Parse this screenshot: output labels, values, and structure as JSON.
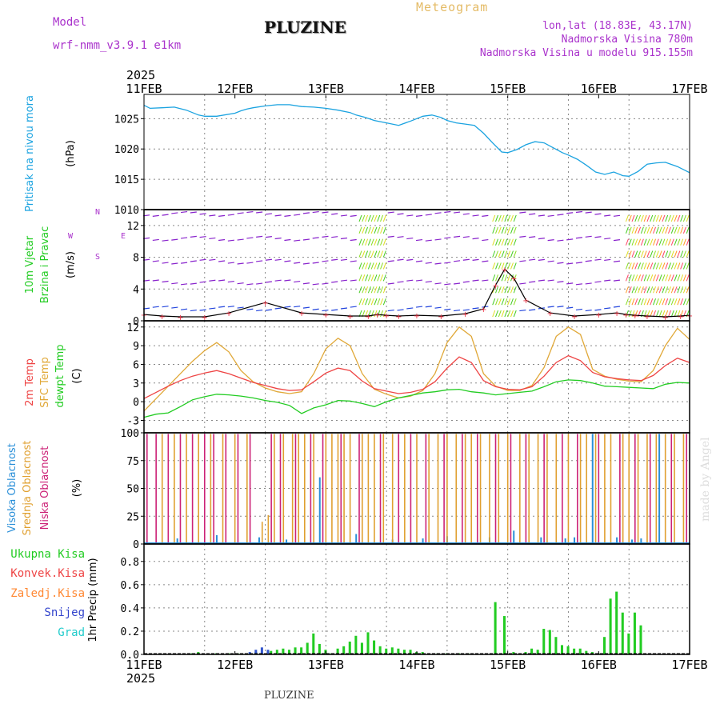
{
  "header": {
    "model_label": "Model",
    "model_name": "wrf-nmm_v3.9.1 e1km",
    "station": "PLUZINE",
    "product": "Meteogram",
    "lonlat": "lon,lat (18.83E, 43.17N)",
    "altitude": "Nadmorska Visina 780m",
    "model_altitude": "Nadmorska Visina u modelu 915.155m",
    "credit": "made by Angel",
    "footer_station": "PLUZINE"
  },
  "colors": {
    "pressure": "#1ba3e0",
    "temp2m": "#ee4444",
    "sfc": "#e0a838",
    "dewpt": "#22cc22",
    "high_cloud": "#2a8fd8",
    "mid_cloud": "#e0a030",
    "low_cloud": "#cc2277",
    "precip": "#22cc22",
    "snow": "#3355cc",
    "purple_text": "#aa33cc",
    "wind_purple": "#8822cc"
  },
  "chart_data": [
    {
      "type": "line",
      "panel": "pressure",
      "title": "Pritisak na nivou mora",
      "ylabel": "(hPa)",
      "year_label": "2025",
      "categories": [
        "11FEB",
        "12FEB",
        "13FEB",
        "14FEB",
        "15FEB",
        "16FEB",
        "17FEB"
      ],
      "ylim": [
        1010,
        1029
      ],
      "yticks": [
        1010,
        1015,
        1020,
        1025
      ],
      "grid": true,
      "series": [
        {
          "name": "Pritisak na nivou mora",
          "x": [
            0,
            0.1,
            0.3,
            0.5,
            0.7,
            0.9,
            1.0,
            1.2,
            1.5,
            1.6,
            1.7,
            1.8,
            2.0,
            2.2,
            2.4,
            2.6,
            2.8,
            3.0,
            3.2,
            3.4,
            3.5,
            3.65,
            3.8,
            4.0,
            4.2,
            4.4,
            4.6,
            4.75,
            4.9,
            5.0,
            5.15,
            5.3,
            5.45,
            5.6,
            5.75,
            5.9,
            6.0,
            6.15,
            6.3,
            6.45,
            6.6,
            6.75,
            6.9,
            7.0,
            7.15,
            7.3,
            7.45,
            7.6,
            7.75,
            7.9,
            8.0,
            8.15,
            8.3,
            8.45,
            8.6,
            8.8,
            9.0
          ],
          "values": [
            1027.2,
            1026.7,
            1026.8,
            1026.9,
            1026.4,
            1025.6,
            1025.4,
            1025.4,
            1025.9,
            1026.3,
            1026.6,
            1026.8,
            1027.1,
            1027.3,
            1027.3,
            1027.0,
            1026.9,
            1026.7,
            1026.4,
            1026.0,
            1025.6,
            1025.2,
            1024.7,
            1024.3,
            1023.9,
            1024.6,
            1025.4,
            1025.6,
            1025.2,
            1024.7,
            1024.3,
            1024.1,
            1023.9,
            1022.6,
            1021.0,
            1019.5,
            1019.4,
            1019.9,
            1020.7,
            1021.2,
            1021.0,
            1020.2,
            1019.4,
            1019.0,
            1018.3,
            1017.3,
            1016.2,
            1015.8,
            1016.2,
            1015.6,
            1015.5,
            1016.3,
            1017.5,
            1017.7,
            1017.8,
            1017.1,
            1016.1
          ]
        }
      ]
    },
    {
      "type": "scatter",
      "panel": "wind",
      "title": "10m Vjetar",
      "subtitle": "Brzina i Pravac",
      "ylabel": "(m/s)",
      "compass": [
        "N",
        "S",
        "W",
        "E"
      ],
      "ylim": [
        0,
        14
      ],
      "yticks": [
        0,
        4,
        8,
        12
      ],
      "grid": true,
      "series": [
        {
          "name": "Brzina",
          "x": [
            0,
            0.3,
            0.6,
            1.0,
            1.4,
            2.0,
            2.6,
            3.0,
            3.4,
            3.7,
            3.85,
            4.0,
            4.2,
            4.5,
            4.9,
            5.3,
            5.6,
            5.8,
            5.95,
            6.1,
            6.3,
            6.7,
            7.1,
            7.5,
            7.8,
            7.95,
            8.1,
            8.3,
            8.6,
            8.85,
            9.0
          ],
          "values": [
            0.8,
            0.6,
            0.5,
            0.5,
            1.0,
            2.3,
            1.0,
            0.8,
            0.6,
            0.6,
            0.8,
            0.7,
            0.6,
            0.7,
            0.6,
            0.9,
            1.5,
            4.5,
            6.5,
            5.4,
            2.6,
            1.0,
            0.6,
            0.8,
            1.0,
            0.8,
            0.7,
            0.6,
            0.5,
            0.6,
            0.7
          ]
        }
      ]
    },
    {
      "type": "line",
      "panel": "temperature",
      "title": "2m Temp",
      "subtitle": "SFC Temp",
      "title3": "dewpt Temp",
      "ylabel": "(C)",
      "ylim": [
        -5,
        13
      ],
      "yticks": [
        -3,
        0,
        3,
        6,
        9,
        12
      ],
      "grid": true,
      "series": [
        {
          "name": "2m Temp",
          "x": [
            0,
            0.2,
            0.4,
            0.6,
            0.8,
            1.0,
            1.2,
            1.4,
            1.6,
            1.8,
            2.0,
            2.2,
            2.4,
            2.6,
            2.8,
            3.0,
            3.2,
            3.4,
            3.6,
            3.8,
            4.0,
            4.2,
            4.4,
            4.6,
            4.8,
            5.0,
            5.2,
            5.4,
            5.6,
            5.8,
            6.0,
            6.2,
            6.4,
            6.6,
            6.8,
            7.0,
            7.2,
            7.4,
            7.6,
            7.8,
            8.0,
            8.2,
            8.4,
            8.6,
            8.8,
            9.0
          ],
          "values": [
            0.5,
            1.5,
            2.5,
            3.4,
            4.1,
            4.6,
            5.0,
            4.5,
            3.8,
            3.1,
            2.6,
            2.1,
            1.8,
            1.9,
            3.2,
            4.6,
            5.4,
            5.0,
            3.3,
            2.1,
            1.7,
            1.3,
            1.5,
            2.0,
            3.2,
            5.4,
            7.2,
            6.3,
            3.4,
            2.4,
            2.0,
            1.9,
            2.4,
            4.1,
            6.3,
            7.4,
            6.6,
            4.7,
            4.0,
            3.7,
            3.5,
            3.4,
            4.2,
            5.8,
            7.0,
            6.3
          ]
        },
        {
          "name": "SFC Temp",
          "x": [
            0,
            0.2,
            0.4,
            0.6,
            0.8,
            1.0,
            1.2,
            1.4,
            1.6,
            1.8,
            2.0,
            2.2,
            2.4,
            2.6,
            2.8,
            3.0,
            3.2,
            3.4,
            3.6,
            3.8,
            4.0,
            4.2,
            4.4,
            4.6,
            4.8,
            5.0,
            5.2,
            5.4,
            5.6,
            5.8,
            6.0,
            6.2,
            6.4,
            6.6,
            6.8,
            7.0,
            7.2,
            7.4,
            7.6,
            7.8,
            8.0,
            8.2,
            8.4,
            8.6,
            8.8,
            9.0
          ],
          "values": [
            -1.5,
            0.5,
            2.5,
            4.5,
            6.5,
            8.2,
            9.5,
            8.0,
            5.0,
            3.2,
            2.2,
            1.6,
            1.3,
            1.6,
            4.5,
            8.5,
            10.2,
            9.0,
            4.5,
            2.0,
            1.2,
            0.6,
            0.9,
            1.8,
            4.5,
            9.5,
            12.0,
            10.5,
            4.5,
            2.5,
            1.8,
            1.8,
            2.6,
            5.5,
            10.5,
            12.0,
            10.8,
            5.2,
            4.1,
            3.6,
            3.3,
            3.2,
            5.0,
            9.0,
            11.8,
            10.0
          ]
        },
        {
          "name": "dewpt Temp",
          "x": [
            0,
            0.2,
            0.4,
            0.6,
            0.8,
            1.0,
            1.2,
            1.4,
            1.6,
            1.8,
            2.0,
            2.2,
            2.4,
            2.6,
            2.8,
            3.0,
            3.2,
            3.4,
            3.6,
            3.8,
            4.0,
            4.2,
            4.4,
            4.6,
            4.8,
            5.0,
            5.2,
            5.4,
            5.6,
            5.8,
            6.0,
            6.2,
            6.4,
            6.6,
            6.8,
            7.0,
            7.2,
            7.4,
            7.6,
            7.8,
            8.0,
            8.2,
            8.4,
            8.6,
            8.8,
            9.0
          ],
          "values": [
            -2.5,
            -2.0,
            -1.8,
            -0.8,
            0.3,
            0.8,
            1.2,
            1.1,
            0.9,
            0.6,
            0.2,
            -0.1,
            -0.6,
            -1.9,
            -1.0,
            -0.5,
            0.2,
            0.1,
            -0.3,
            -0.8,
            0.0,
            0.6,
            1.0,
            1.4,
            1.6,
            1.9,
            2.0,
            1.6,
            1.4,
            1.1,
            1.3,
            1.5,
            1.7,
            2.4,
            3.2,
            3.5,
            3.4,
            3.0,
            2.5,
            2.4,
            2.3,
            2.2,
            2.1,
            2.8,
            3.1,
            3.0
          ]
        }
      ]
    },
    {
      "type": "bar",
      "panel": "cloud",
      "title": "Visoka Oblacnost",
      "subtitle": "Srednja Oblacnost",
      "title3": "Niska Oblacnost",
      "ylabel": "(%)",
      "ylim": [
        0,
        100
      ],
      "yticks": [
        0,
        25,
        50,
        75,
        100
      ],
      "grid": true,
      "series": [
        {
          "name": "Visoka Oblacnost",
          "x": [
            0.55,
            1.2,
            1.9,
            2.35,
            2.9,
            3.5,
            4.1,
            4.6,
            5.0,
            5.7,
            6.1,
            6.55,
            6.95,
            7.1,
            7.4,
            7.8,
            8.05,
            8.2,
            8.5
          ],
          "values": [
            5,
            8,
            6,
            4,
            60,
            9,
            4,
            5,
            7,
            6,
            12,
            6,
            5,
            6,
            99,
            6,
            4,
            5,
            99
          ]
        },
        {
          "name": "Srednja Oblacnost",
          "x": [
            0.3,
            0.5,
            0.7,
            0.9,
            1.1,
            1.3,
            1.5,
            1.7,
            1.95,
            2.05,
            2.15,
            2.3,
            2.45,
            2.55,
            2.65,
            2.8,
            3.0,
            3.1,
            3.2,
            3.3,
            3.4,
            3.6,
            3.7,
            3.8,
            3.95,
            4.1,
            4.3,
            4.5,
            4.7,
            4.85,
            5.0,
            5.15,
            5.3,
            5.4,
            5.55,
            5.7,
            5.85,
            6.0,
            6.2,
            6.35,
            6.5,
            6.65,
            6.8,
            7.0,
            7.2,
            7.3,
            7.45,
            7.6,
            7.7,
            7.9,
            8.0,
            8.15,
            8.3,
            8.45,
            8.6,
            8.75,
            8.9
          ],
          "values": [
            99,
            99,
            99,
            99,
            99,
            99,
            99,
            99,
            20,
            26,
            99,
            99,
            99,
            99,
            99,
            99,
            99,
            99,
            99,
            99,
            99,
            99,
            99,
            99,
            99,
            99,
            99,
            99,
            99,
            99,
            99,
            99,
            99,
            99,
            99,
            99,
            99,
            99,
            99,
            99,
            99,
            99,
            99,
            99,
            99,
            99,
            99,
            99,
            99,
            99,
            99,
            99,
            99,
            99,
            99,
            99,
            99
          ]
        },
        {
          "name": "Niska Oblacnost",
          "x": [
            0.05,
            0.2,
            0.4,
            0.6,
            0.8,
            1.0,
            1.15,
            1.35,
            1.55,
            1.75,
            2.1,
            2.25,
            2.5,
            2.75,
            2.95,
            3.25,
            3.55,
            3.9,
            4.2,
            4.4,
            4.65,
            4.95,
            5.25,
            5.5,
            5.8,
            6.05,
            6.3,
            6.6,
            6.9,
            7.15,
            7.5,
            7.85,
            8.1,
            8.35,
            8.7,
            8.95
          ],
          "values": [
            99,
            99,
            99,
            99,
            99,
            99,
            99,
            99,
            99,
            99,
            99,
            99,
            99,
            99,
            99,
            99,
            99,
            99,
            99,
            99,
            99,
            99,
            99,
            99,
            99,
            99,
            99,
            99,
            99,
            99,
            99,
            99,
            99,
            99,
            99,
            99
          ]
        }
      ]
    },
    {
      "type": "bar",
      "panel": "precip",
      "ylabel": "1hr Precip (mm)",
      "legend": [
        "Ukupna Kisa",
        "Konvek.Kisa",
        "Zaledj.Kisa",
        "Snijeg",
        "Grad"
      ],
      "categories": [
        "11FEB",
        "12FEB",
        "13FEB",
        "14FEB",
        "15FEB",
        "16FEB",
        "17FEB"
      ],
      "year_label": "2025",
      "ylim": [
        0,
        0.95
      ],
      "yticks": [
        0,
        0.2,
        0.4,
        0.6,
        0.8
      ],
      "grid": true,
      "series": [
        {
          "name": "Ukupna Kisa",
          "x": [
            0.8,
            0.9,
            1.2,
            1.4,
            1.55,
            1.75,
            1.85,
            1.95,
            2.1,
            2.2,
            2.3,
            2.4,
            2.5,
            2.6,
            2.7,
            2.8,
            2.9,
            3.0,
            3.1,
            3.2,
            3.3,
            3.4,
            3.5,
            3.6,
            3.7,
            3.8,
            3.9,
            4.0,
            4.1,
            4.2,
            4.3,
            4.4,
            4.5,
            4.6,
            4.7,
            4.85,
            5.0,
            5.1,
            5.2,
            5.35,
            5.8,
            5.95,
            6.1,
            6.2,
            6.3,
            6.4,
            6.5,
            6.6,
            6.7,
            6.8,
            6.9,
            7.0,
            7.1,
            7.2,
            7.3,
            7.4,
            7.5,
            7.6,
            7.7,
            7.8,
            7.9,
            8.0,
            8.1,
            8.2
          ],
          "values": [
            0.01,
            0.02,
            0.01,
            0.01,
            0.01,
            0.01,
            0.02,
            0.01,
            0.03,
            0.04,
            0.05,
            0.04,
            0.06,
            0.06,
            0.1,
            0.18,
            0.09,
            0.04,
            0.01,
            0.05,
            0.07,
            0.11,
            0.16,
            0.1,
            0.19,
            0.12,
            0.07,
            0.05,
            0.06,
            0.05,
            0.04,
            0.04,
            0.02,
            0.02,
            0.01,
            0.01,
            0.01,
            0.01,
            0.01,
            0.01,
            0.45,
            0.33,
            0.02,
            0.01,
            0.02,
            0.05,
            0.04,
            0.22,
            0.21,
            0.15,
            0.08,
            0.07,
            0.05,
            0.05,
            0.03,
            0.02,
            0.01,
            0.15,
            0.48,
            0.54,
            0.36,
            0.18,
            0.36,
            0.25
          ]
        },
        {
          "name": "Snijeg",
          "x": [
            1.75,
            1.85,
            1.95,
            2.05
          ],
          "values": [
            0.02,
            0.04,
            0.06,
            0.04
          ]
        }
      ]
    }
  ]
}
